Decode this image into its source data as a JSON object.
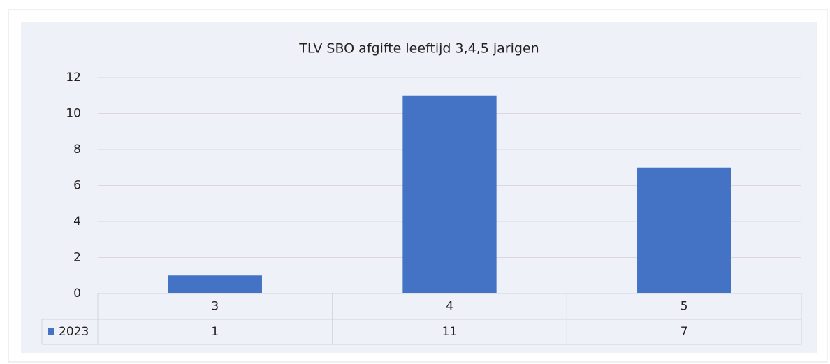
{
  "chart_data": {
    "type": "bar",
    "title": "TLV SBO afgifte leeftijd 3,4,5 jarigen",
    "categories": [
      "3",
      "4",
      "5"
    ],
    "series": [
      {
        "name": "2023",
        "color": "#4472c4",
        "values": [
          1,
          11,
          7
        ]
      }
    ],
    "ylim": [
      0,
      12
    ],
    "yticks": [
      0,
      2,
      4,
      6,
      8,
      10,
      12
    ],
    "grid": true,
    "data_table": true
  }
}
